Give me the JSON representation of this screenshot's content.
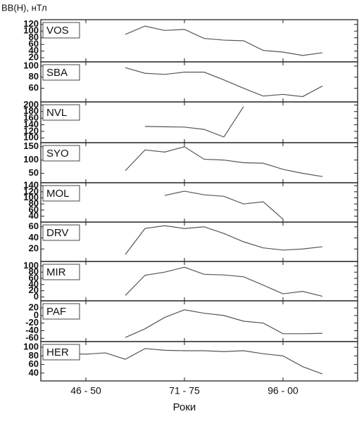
{
  "chart_data": {
    "type": "line",
    "y_label": "BB(H), нТл",
    "x_label": "Роки",
    "color": "#555555",
    "categories": [
      null,
      null,
      "46 - 50",
      null,
      null,
      null,
      null,
      "71 - 75",
      null,
      null,
      null,
      null,
      "96 - 00",
      null,
      null,
      null
    ],
    "panels": [
      {
        "title": "VOS",
        "ylim": [
          12,
          130
        ],
        "yticks": [
          20,
          40,
          60,
          80,
          100,
          120
        ],
        "values": [
          null,
          null,
          null,
          null,
          90,
          115,
          102,
          105,
          78,
          73,
          71,
          42,
          37,
          27,
          35,
          null
        ]
      },
      {
        "title": "SBA",
        "ylim": [
          38,
          105
        ],
        "yticks": [
          60,
          80,
          100
        ],
        "values": [
          null,
          null,
          null,
          null,
          97,
          87,
          85,
          89,
          89,
          75,
          60,
          46,
          49,
          45,
          64,
          null
        ]
      },
      {
        "title": "NVL",
        "ylim": [
          90,
          205
        ],
        "yticks": [
          100,
          120,
          140,
          160,
          180,
          200
        ],
        "values": [
          null,
          null,
          null,
          null,
          null,
          135,
          134,
          133,
          126,
          103,
          195,
          null,
          null,
          null,
          null,
          null
        ]
      },
      {
        "title": "SYO",
        "ylim": [
          20,
          160
        ],
        "yticks": [
          50,
          100,
          150
        ],
        "values": [
          null,
          null,
          null,
          null,
          60,
          138,
          130,
          150,
          103,
          100,
          90,
          88,
          65,
          50,
          38,
          null
        ]
      },
      {
        "title": "MOL",
        "ylim": [
          25,
          145
        ],
        "yticks": [
          40,
          60,
          80,
          100,
          120,
          140
        ],
        "values": [
          null,
          null,
          null,
          null,
          null,
          null,
          108,
          122,
          110,
          105,
          80,
          87,
          30,
          null,
          null,
          null
        ]
      },
      {
        "title": "DRV",
        "ylim": [
          0,
          66
        ],
        "yticks": [
          20,
          40,
          60
        ],
        "values": [
          null,
          null,
          null,
          null,
          10,
          57,
          62,
          57,
          60,
          48,
          33,
          22,
          18,
          20,
          24,
          null
        ]
      },
      {
        "title": "MIR",
        "ylim": [
          -8,
          110
        ],
        "yticks": [
          0,
          20,
          40,
          60,
          80,
          100
        ],
        "values": [
          null,
          null,
          null,
          null,
          5,
          70,
          80,
          96,
          73,
          71,
          65,
          38,
          10,
          18,
          2,
          null
        ]
      },
      {
        "title": "PAF",
        "ylim": [
          -65,
          35
        ],
        "yticks": [
          -60,
          -40,
          -20,
          0,
          20
        ],
        "values": [
          null,
          null,
          null,
          null,
          -58,
          -35,
          -5,
          15,
          6,
          0,
          -15,
          -20,
          -48,
          -48,
          -47,
          null
        ]
      },
      {
        "title": "HER",
        "ylim": [
          25,
          110
        ],
        "yticks": [
          40,
          60,
          80,
          100
        ],
        "values": [
          88,
          85,
          84,
          87,
          72,
          97,
          93,
          92,
          92,
          90,
          92,
          85,
          80,
          55,
          38,
          null
        ]
      }
    ]
  }
}
